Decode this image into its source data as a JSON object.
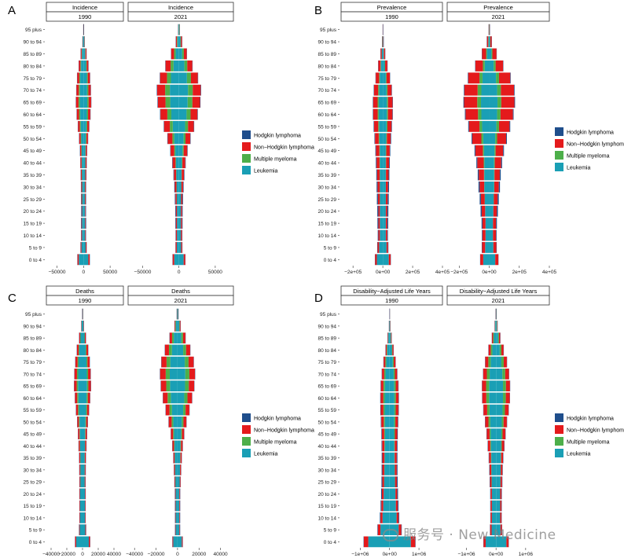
{
  "colors": {
    "hodgkin": "#1f4e8c",
    "nonhodgkin": "#e41a1c",
    "myeloma": "#4daf4a",
    "leukemia": "#1a9fb5",
    "strip_bg": "#f2f2f2"
  },
  "age_groups": [
    "0 to 4",
    "5 to 9",
    "10 to 14",
    "15 to 19",
    "20 to 24",
    "25 to 29",
    "30 to 34",
    "35 to 39",
    "40 to 44",
    "45 to 49",
    "50 to 54",
    "55 to 59",
    "60 to 64",
    "65 to 69",
    "70 to 74",
    "75 to 79",
    "80 to 84",
    "85 to 89",
    "90 to 94",
    "95 plus"
  ],
  "legend_items": [
    {
      "label": "Hodgkin lymphoma",
      "color": "#1f4e8c"
    },
    {
      "label": "Non−Hodgkin lymphoma",
      "color": "#e41a1c"
    },
    {
      "label": "Multiple myeloma",
      "color": "#4daf4a"
    },
    {
      "label": "Leukemia",
      "color": "#1a9fb5"
    }
  ],
  "watermark": "服务号 · New Medicine",
  "chart_data": [
    {
      "type": "bar",
      "panel_letter": "A",
      "facet_titles": [
        "Incidence",
        "Incidence"
      ],
      "years": [
        "1990",
        "2021"
      ],
      "xlim": [
        -70000,
        75000
      ],
      "tick_values": [
        -50000,
        0,
        50000
      ],
      "tick_labels": [
        "−50000",
        "0",
        "50000"
      ],
      "series_order": [
        "Leukemia",
        "Multiple myeloma",
        "Non−Hodgkin lymphoma",
        "Hodgkin lymphoma"
      ],
      "series": [
        {
          "name": "Leukemia",
          "values_1990": [
            18000,
            8000,
            6000,
            6000,
            5500,
            5500,
            5500,
            6000,
            6500,
            7000,
            8500,
            10500,
            12500,
            14000,
            13500,
            12500,
            9500,
            6000,
            2500,
            700
          ],
          "values_2021": [
            13000,
            6000,
            5500,
            5500,
            5500,
            6000,
            6500,
            7000,
            8000,
            10000,
            13000,
            17000,
            21000,
            24000,
            25000,
            22000,
            15000,
            9000,
            4000,
            1200
          ]
        },
        {
          "name": "Multiple myeloma",
          "values_1990": [
            0,
            0,
            0,
            0,
            0,
            100,
            200,
            500,
            900,
            1500,
            2500,
            3500,
            4500,
            5000,
            4500,
            3500,
            2500,
            1200,
            400,
            100
          ],
          "values_2021": [
            0,
            0,
            0,
            0,
            0,
            100,
            300,
            800,
            1500,
            3000,
            5000,
            8000,
            11000,
            13000,
            13000,
            11000,
            8000,
            4500,
            1500,
            300
          ]
        },
        {
          "name": "Non−Hodgkin lymphoma",
          "values_1990": [
            5000,
            3000,
            2500,
            2000,
            2000,
            2500,
            3000,
            3500,
            4000,
            4500,
            5500,
            7000,
            8500,
            9500,
            9000,
            8000,
            6000,
            3500,
            1200,
            300
          ],
          "values_2021": [
            4500,
            3000,
            3000,
            3000,
            3000,
            3500,
            4500,
            6000,
            8000,
            10000,
            13000,
            16000,
            19000,
            21000,
            22000,
            19000,
            14000,
            8000,
            3000,
            700
          ]
        },
        {
          "name": "Hodgkin lymphoma",
          "values_1990": [
            400,
            800,
            1100,
            1800,
            1800,
            1500,
            1200,
            1000,
            900,
            800,
            800,
            800,
            900,
            900,
            800,
            700,
            500,
            300,
            100,
            50
          ],
          "values_2021": [
            300,
            600,
            900,
            1500,
            1700,
            1700,
            1500,
            1300,
            1100,
            1000,
            1000,
            1000,
            1100,
            1200,
            1100,
            900,
            700,
            400,
            150,
            50
          ]
        }
      ]
    },
    {
      "type": "bar",
      "panel_letter": "B",
      "facet_titles": [
        "Prevalence",
        "Prevalence"
      ],
      "years": [
        "1990",
        "2021"
      ],
      "xlim": [
        -280000,
        400000
      ],
      "tick_values": [
        -200000,
        0,
        200000,
        400000
      ],
      "tick_labels": [
        "−2e+05",
        "0e+00",
        "2e+05",
        "4e+05"
      ],
      "series_order": [
        "Leukemia",
        "Multiple myeloma",
        "Non−Hodgkin lymphoma",
        "Hodgkin lymphoma"
      ],
      "series": [
        {
          "name": "Leukemia",
          "values_1990": [
            80000,
            50000,
            40000,
            40000,
            40000,
            40000,
            40000,
            40000,
            40000,
            40000,
            45000,
            50000,
            55000,
            55000,
            50000,
            40000,
            25000,
            12000,
            4000,
            1000
          ],
          "values_2021": [
            80000,
            55000,
            50000,
            50000,
            55000,
            60000,
            65000,
            65000,
            65000,
            70000,
            80000,
            95000,
            105000,
            110000,
            105000,
            90000,
            60000,
            30000,
            10000,
            2500
          ]
        },
        {
          "name": "Multiple myeloma",
          "values_1990": [
            0,
            0,
            0,
            0,
            0,
            500,
            1000,
            2500,
            4500,
            7000,
            10000,
            12000,
            14000,
            15000,
            13000,
            10000,
            6000,
            3000,
            1000,
            200
          ],
          "values_2021": [
            0,
            0,
            0,
            0,
            0,
            1000,
            2500,
            5000,
            9000,
            15000,
            25000,
            35000,
            45000,
            50000,
            50000,
            40000,
            25000,
            12000,
            4000,
            800
          ]
        },
        {
          "name": "Non−Hodgkin lymphoma",
          "values_1990": [
            25000,
            20000,
            20000,
            20000,
            20000,
            25000,
            30000,
            35000,
            40000,
            45000,
            50000,
            55000,
            60000,
            60000,
            55000,
            45000,
            30000,
            15000,
            5000,
            1000
          ],
          "values_2021": [
            40000,
            40000,
            40000,
            40000,
            45000,
            50000,
            60000,
            70000,
            85000,
            100000,
            120000,
            140000,
            165000,
            175000,
            175000,
            150000,
            100000,
            55000,
            18000,
            4000
          ]
        },
        {
          "name": "Hodgkin lymphoma",
          "values_1990": [
            2000,
            5000,
            8000,
            12000,
            14000,
            14000,
            12000,
            10000,
            9000,
            8000,
            7000,
            6000,
            5500,
            5000,
            4500,
            3500,
            2500,
            1200,
            400,
            100
          ],
          "values_2021": [
            2000,
            5000,
            8000,
            12000,
            15000,
            16000,
            15000,
            13000,
            12000,
            11000,
            10000,
            9500,
            9000,
            8500,
            7500,
            6000,
            4000,
            2000,
            600,
            150
          ]
        }
      ]
    },
    {
      "type": "bar",
      "panel_letter": "C",
      "facet_titles": [
        "Deaths",
        "Deaths"
      ],
      "years": [
        "1990",
        "2021"
      ],
      "xlim": [
        -46000,
        52000
      ],
      "tick_values": [
        -40000,
        -20000,
        0,
        20000,
        40000
      ],
      "tick_labels": [
        "−40000",
        "−20000",
        "0",
        "20000",
        "40000"
      ],
      "series_order": [
        "Leukemia",
        "Multiple myeloma",
        "Non−Hodgkin lymphoma",
        "Hodgkin lymphoma"
      ],
      "series": [
        {
          "name": "Leukemia",
          "values_1990": [
            16000,
            7000,
            6000,
            6000,
            6000,
            5500,
            5500,
            5500,
            6000,
            6500,
            7500,
            9000,
            10500,
            11500,
            11000,
            10000,
            8000,
            5000,
            2000,
            600
          ],
          "values_2021": [
            8000,
            3500,
            3500,
            3500,
            3500,
            4000,
            4500,
            5000,
            5500,
            6500,
            8000,
            10500,
            12500,
            14000,
            14500,
            13500,
            10500,
            7000,
            3000,
            900
          ]
        },
        {
          "name": "Multiple myeloma",
          "values_1990": [
            0,
            0,
            0,
            0,
            0,
            100,
            200,
            400,
            700,
            1200,
            1800,
            2500,
            3000,
            3300,
            3100,
            2600,
            1800,
            1000,
            300,
            80
          ],
          "values_2021": [
            0,
            0,
            0,
            0,
            0,
            100,
            200,
            500,
            1000,
            1800,
            3000,
            4500,
            6000,
            7000,
            7500,
            7000,
            5500,
            3200,
            1100,
            250
          ]
        },
        {
          "name": "Non−Hodgkin lymphoma",
          "values_1990": [
            3000,
            1800,
            1500,
            1500,
            1500,
            1800,
            2000,
            2500,
            3000,
            3500,
            4000,
            5000,
            5500,
            6500,
            6500,
            5500,
            4500,
            2500,
            900,
            200
          ],
          "values_2021": [
            1500,
            1000,
            1000,
            1200,
            1300,
            1500,
            1800,
            2200,
            3000,
            4000,
            5500,
            7000,
            8500,
            10000,
            10500,
            9500,
            7500,
            4500,
            1500,
            350
          ]
        },
        {
          "name": "Hodgkin lymphoma",
          "values_1990": [
            200,
            300,
            400,
            600,
            700,
            700,
            700,
            600,
            600,
            600,
            600,
            600,
            600,
            650,
            600,
            500,
            400,
            200,
            80,
            30
          ],
          "values_2021": [
            100,
            150,
            200,
            250,
            300,
            300,
            300,
            300,
            300,
            350,
            350,
            400,
            450,
            500,
            500,
            450,
            350,
            200,
            80,
            30
          ]
        }
      ]
    },
    {
      "type": "bar",
      "panel_letter": "D",
      "facet_titles": [
        "Disability−Adjusted Life Years",
        "Disability−Adjusted Life Years"
      ],
      "years": [
        "1990",
        "2021"
      ],
      "xlim": [
        -1650000,
        1800000
      ],
      "tick_values": [
        -1000000,
        0,
        1000000
      ],
      "tick_labels": [
        "−1e+06",
        "0e+00",
        "1e+06"
      ],
      "series_order": [
        "Leukemia",
        "Multiple myeloma",
        "Non−Hodgkin lymphoma",
        "Hodgkin lymphoma"
      ],
      "series": [
        {
          "name": "Leukemia",
          "values_1990": [
            1450000,
            620000,
            480000,
            430000,
            400000,
            370000,
            350000,
            330000,
            320000,
            310000,
            320000,
            330000,
            330000,
            320000,
            280000,
            220000,
            150000,
            80000,
            25000,
            5000
          ],
          "values_2021": [
            700000,
            300000,
            280000,
            280000,
            280000,
            300000,
            310000,
            320000,
            340000,
            360000,
            390000,
            440000,
            470000,
            470000,
            430000,
            360000,
            250000,
            140000,
            50000,
            12000
          ]
        },
        {
          "name": "Multiple myeloma",
          "values_1990": [
            0,
            0,
            0,
            0,
            0,
            5000,
            10000,
            20000,
            35000,
            55000,
            75000,
            90000,
            100000,
            100000,
            85000,
            65000,
            40000,
            18000,
            5000,
            1000
          ],
          "values_2021": [
            0,
            0,
            0,
            0,
            0,
            5000,
            12000,
            25000,
            50000,
            80000,
            120000,
            160000,
            190000,
            200000,
            190000,
            160000,
            110000,
            60000,
            18000,
            4000
          ]
        },
        {
          "name": "Non−Hodgkin lymphoma",
          "values_1990": [
            300000,
            180000,
            140000,
            130000,
            120000,
            120000,
            130000,
            140000,
            150000,
            160000,
            170000,
            180000,
            180000,
            170000,
            150000,
            120000,
            80000,
            40000,
            12000,
            2500
          ],
          "values_2021": [
            150000,
            100000,
            90000,
            90000,
            90000,
            100000,
            110000,
            130000,
            160000,
            190000,
            220000,
            250000,
            270000,
            270000,
            250000,
            210000,
            150000,
            80000,
            25000,
            5000
          ]
        },
        {
          "name": "Hodgkin lymphoma",
          "values_1990": [
            20000,
            30000,
            40000,
            50000,
            55000,
            55000,
            50000,
            45000,
            40000,
            35000,
            30000,
            28000,
            26000,
            24000,
            20000,
            16000,
            10000,
            5000,
            1500,
            300
          ],
          "values_2021": [
            10000,
            15000,
            18000,
            22000,
            25000,
            25000,
            24000,
            22000,
            20000,
            19000,
            18000,
            17000,
            16000,
            15000,
            13000,
            10000,
            7000,
            3500,
            1000,
            200
          ]
        }
      ]
    }
  ]
}
